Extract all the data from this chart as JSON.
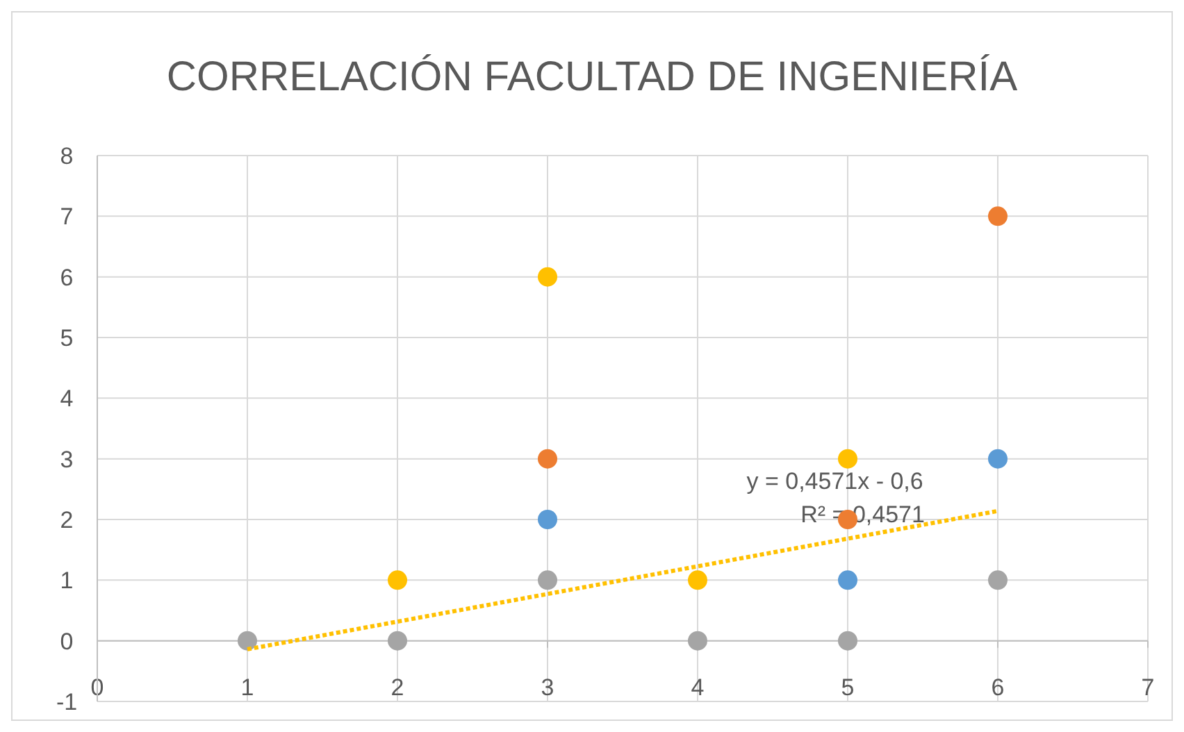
{
  "chart_data": {
    "type": "scatter",
    "title": "CORRELACIÓN FACULTAD DE INGENIERÍA",
    "xlim": [
      0,
      7
    ],
    "xticks": [
      0,
      1,
      2,
      3,
      4,
      5,
      6,
      7
    ],
    "ylim": [
      -1,
      8
    ],
    "yticks": [
      -1,
      0,
      1,
      2,
      3,
      4,
      5,
      6,
      7,
      8
    ],
    "grid": true,
    "marker": "circle",
    "series": [
      {
        "color": "#5b9bd5",
        "x": [
          3,
          5,
          6
        ],
        "values": [
          2,
          1,
          3
        ]
      },
      {
        "color": "#ed7d31",
        "x": [
          3,
          5,
          6
        ],
        "values": [
          3,
          2,
          7
        ]
      },
      {
        "color": "#a5a5a5",
        "x": [
          1,
          2,
          3,
          4,
          5,
          6
        ],
        "values": [
          0,
          0,
          1,
          0,
          0,
          1
        ]
      },
      {
        "color": "#ffc000",
        "x": [
          2,
          3,
          4,
          5
        ],
        "values": [
          1,
          6,
          1,
          3
        ]
      },
      {
        "type": "line",
        "color": "#ffc000",
        "line_style": "dotted",
        "marker": "none",
        "x": [
          1,
          6
        ],
        "values": [
          -0.14,
          2.14
        ]
      }
    ],
    "annotations": [
      "y = 0,4571x - 0,6",
      "R² = 0,4571"
    ]
  }
}
